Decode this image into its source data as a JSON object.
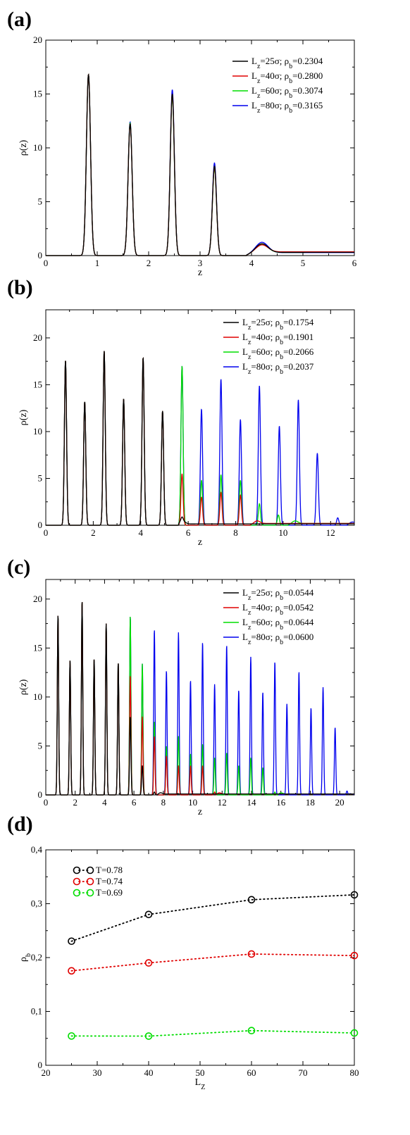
{
  "colors": {
    "black": "#000000",
    "red": "#e00000",
    "green": "#00dd00",
    "blue": "#0000ee"
  },
  "chart_data": [
    {
      "type": "line",
      "panel_label": "(a)",
      "xlabel": "z",
      "ylabel": "ρ(z)",
      "xlim": [
        0,
        6
      ],
      "ylim": [
        0,
        20
      ],
      "xticks": [
        0,
        1,
        2,
        3,
        4,
        5,
        6
      ],
      "yticks": [
        0,
        5,
        10,
        15,
        20
      ],
      "grid": false,
      "legend_position": "top-right",
      "series": [
        {
          "lz": "25",
          "rho": "0.2304",
          "color": "#000000",
          "peaks": [
            [
              0.83,
              16.8
            ],
            [
              1.64,
              12.2
            ],
            [
              2.46,
              15.0
            ],
            [
              3.28,
              8.3
            ]
          ],
          "tail": {
            "start": 3.9,
            "bump": [
              4.2,
              0.85
            ],
            "level": 0.3
          }
        },
        {
          "lz": "40",
          "rho": "0.2800",
          "color": "#e00000",
          "peaks": [
            [
              0.83,
              16.8
            ],
            [
              1.64,
              12.2
            ],
            [
              2.46,
              15.0
            ],
            [
              3.28,
              8.2
            ]
          ],
          "tail": {
            "start": 3.9,
            "bump": [
              4.2,
              0.7
            ],
            "level": 0.35
          }
        },
        {
          "lz": "60",
          "rho": "0.3074",
          "color": "#00dd00",
          "peaks": [
            [
              0.83,
              16.8
            ],
            [
              1.64,
              12.3
            ],
            [
              2.46,
              14.8
            ],
            [
              3.28,
              8.1
            ]
          ],
          "tail": {
            "start": 3.9,
            "bump": [
              4.2,
              0.8
            ],
            "level": 0.3
          }
        },
        {
          "lz": "80",
          "rho": "0.3165",
          "color": "#0000ee",
          "peaks": [
            [
              0.83,
              16.8
            ],
            [
              1.64,
              12.4
            ],
            [
              2.46,
              15.4
            ],
            [
              3.28,
              8.6
            ]
          ],
          "tail": {
            "start": 3.9,
            "bump": [
              4.2,
              1.0
            ],
            "level": 0.28
          }
        }
      ]
    },
    {
      "type": "line",
      "panel_label": "(b)",
      "xlabel": "z",
      "ylabel": "ρ(z)",
      "xlim": [
        0,
        13
      ],
      "ylim": [
        0,
        23
      ],
      "xticks": [
        0,
        2,
        4,
        6,
        8,
        10,
        12
      ],
      "yticks": [
        0,
        5,
        10,
        15,
        20
      ],
      "grid": false,
      "legend_position": "top-right",
      "series": [
        {
          "lz": "25",
          "rho": "0.1754",
          "color": "#000000",
          "peaks": [
            [
              0.83,
              17.6
            ],
            [
              1.64,
              13.2
            ],
            [
              2.46,
              18.6
            ],
            [
              3.28,
              13.5
            ],
            [
              4.1,
              17.9
            ],
            [
              4.92,
              12.2
            ],
            [
              5.74,
              0.4
            ]
          ],
          "tail": {
            "start": 5.6,
            "bump": [
              5.74,
              0.4
            ],
            "level": 0.15
          }
        },
        {
          "lz": "40",
          "rho": "0.1901",
          "color": "#e00000",
          "peaks": [
            [
              0.83,
              17.6
            ],
            [
              1.64,
              13.2
            ],
            [
              2.46,
              18.6
            ],
            [
              3.28,
              13.5
            ],
            [
              4.1,
              17.9
            ],
            [
              4.92,
              12.2
            ],
            [
              5.74,
              5.5
            ],
            [
              6.56,
              3.0
            ],
            [
              7.38,
              3.5
            ],
            [
              8.2,
              3.2
            ]
          ],
          "tail": {
            "start": 8.6,
            "bump": [
              8.9,
              0.3
            ],
            "level": 0.2
          }
        },
        {
          "lz": "60",
          "rho": "0.2066",
          "color": "#00dd00",
          "peaks": [
            [
              0.83,
              17.6
            ],
            [
              1.64,
              13.2
            ],
            [
              2.46,
              18.6
            ],
            [
              3.28,
              13.5
            ],
            [
              4.1,
              17.9
            ],
            [
              4.92,
              12.2
            ],
            [
              5.74,
              17.0
            ],
            [
              6.56,
              4.8
            ],
            [
              7.38,
              5.4
            ],
            [
              8.2,
              4.8
            ],
            [
              9.0,
              2.3
            ],
            [
              9.8,
              1.1
            ]
          ],
          "tail": {
            "start": 10.2,
            "bump": [
              10.5,
              0.3
            ],
            "level": 0.2
          }
        },
        {
          "lz": "80",
          "rho": "0.2037",
          "color": "#0000ee",
          "peaks": [
            [
              0.83,
              17.6
            ],
            [
              1.64,
              13.2
            ],
            [
              2.46,
              18.6
            ],
            [
              3.28,
              13.5
            ],
            [
              4.1,
              17.9
            ],
            [
              4.92,
              12.2
            ],
            [
              5.74,
              17.0
            ],
            [
              6.56,
              12.4
            ],
            [
              7.38,
              15.6
            ],
            [
              8.2,
              11.3
            ],
            [
              9.0,
              14.9
            ],
            [
              9.84,
              10.6
            ],
            [
              10.64,
              13.4
            ],
            [
              11.44,
              7.7
            ],
            [
              12.3,
              0.8
            ]
          ],
          "tail": {
            "start": 12.7,
            "bump": [
              12.9,
              0.2
            ],
            "level": 0.2
          }
        }
      ]
    },
    {
      "type": "line",
      "panel_label": "(c)",
      "xlabel": "z",
      "ylabel": "ρ(z)",
      "xlim": [
        0,
        21
      ],
      "ylim": [
        0,
        22
      ],
      "xticks": [
        0,
        2,
        4,
        6,
        8,
        10,
        12,
        14,
        16,
        18,
        20
      ],
      "yticks": [
        0,
        5,
        10,
        15,
        20
      ],
      "grid": false,
      "legend_position": "top-right",
      "series": [
        {
          "lz": "25",
          "rho": "0.0544",
          "color": "#000000",
          "peaks": [
            [
              0.83,
              18.4
            ],
            [
              1.65,
              13.7
            ],
            [
              2.47,
              19.8
            ],
            [
              3.29,
              13.9
            ],
            [
              4.11,
              17.5
            ],
            [
              4.93,
              13.5
            ],
            [
              5.75,
              8.0
            ],
            [
              6.57,
              3.0
            ],
            [
              7.39,
              0.3
            ]
          ],
          "tail": {
            "start": 7.6,
            "bump": [
              7.8,
              0.15
            ],
            "level": 0.1
          }
        },
        {
          "lz": "40",
          "rho": "0.0542",
          "color": "#e00000",
          "peaks": [
            [
              0.83,
              18.4
            ],
            [
              1.65,
              13.7
            ],
            [
              2.47,
              19.8
            ],
            [
              3.29,
              13.9
            ],
            [
              4.11,
              17.5
            ],
            [
              4.93,
              13.5
            ],
            [
              5.75,
              12.2
            ],
            [
              6.57,
              8.0
            ],
            [
              7.39,
              6.0
            ],
            [
              8.21,
              4.0
            ],
            [
              9.03,
              3.0
            ],
            [
              9.85,
              3.0
            ],
            [
              10.67,
              3.0
            ],
            [
              11.49,
              0.3
            ]
          ],
          "tail": {
            "start": 11.6,
            "bump": [
              11.8,
              0.15
            ],
            "level": 0.1
          }
        },
        {
          "lz": "60",
          "rho": "0.0644",
          "color": "#00dd00",
          "peaks": [
            [
              0.83,
              18.4
            ],
            [
              1.65,
              13.7
            ],
            [
              2.47,
              19.8
            ],
            [
              3.29,
              13.9
            ],
            [
              4.11,
              17.5
            ],
            [
              4.93,
              13.5
            ],
            [
              5.75,
              18.3
            ],
            [
              6.57,
              13.4
            ],
            [
              7.39,
              7.5
            ],
            [
              8.21,
              5.0
            ],
            [
              9.03,
              6.0
            ],
            [
              9.85,
              4.2
            ],
            [
              10.67,
              5.2
            ],
            [
              11.49,
              3.8
            ],
            [
              12.31,
              4.3
            ],
            [
              13.13,
              3.0
            ],
            [
              13.95,
              3.8
            ],
            [
              14.77,
              2.8
            ],
            [
              15.59,
              0.3
            ]
          ],
          "tail": {
            "start": 15.8,
            "bump": [
              16.0,
              0.15
            ],
            "level": 0.1
          }
        },
        {
          "lz": "80",
          "rho": "0.0600",
          "color": "#0000ee",
          "peaks": [
            [
              0.83,
              18.4
            ],
            [
              1.65,
              13.7
            ],
            [
              2.47,
              19.8
            ],
            [
              3.29,
              13.9
            ],
            [
              4.11,
              17.5
            ],
            [
              4.93,
              13.5
            ],
            [
              5.75,
              18.3
            ],
            [
              6.57,
              13.4
            ],
            [
              7.39,
              16.9
            ],
            [
              8.21,
              12.7
            ],
            [
              9.03,
              16.6
            ],
            [
              9.85,
              11.7
            ],
            [
              10.67,
              15.6
            ],
            [
              11.49,
              11.3
            ],
            [
              12.31,
              15.3
            ],
            [
              13.13,
              10.7
            ],
            [
              13.95,
              14.1
            ],
            [
              14.77,
              10.5
            ],
            [
              15.59,
              13.6
            ],
            [
              16.41,
              9.3
            ],
            [
              17.23,
              12.6
            ],
            [
              18.05,
              8.9
            ],
            [
              18.87,
              11.0
            ],
            [
              19.69,
              6.9
            ],
            [
              20.5,
              0.4
            ]
          ],
          "tail": {
            "start": 20.6,
            "bump": [
              20.7,
              0.1
            ],
            "level": 0.05
          }
        }
      ]
    },
    {
      "type": "scatter",
      "panel_label": "(d)",
      "xlabel": "L",
      "xlabel_sub": "Z",
      "ylabel": "ρ",
      "ylabel_sub": "b",
      "xlim": [
        20,
        80
      ],
      "ylim": [
        0,
        0.4
      ],
      "xticks": [
        "20",
        "30",
        "40",
        "50",
        "60",
        "70",
        "80"
      ],
      "yticks": [
        "0",
        "0,1",
        "0,2",
        "0,3",
        "0,4"
      ],
      "grid": false,
      "legend_position": "top-left",
      "series": [
        {
          "name": "T=0.78",
          "color": "#000000",
          "x": [
            25,
            40,
            60,
            80
          ],
          "y": [
            0.2304,
            0.28,
            0.3074,
            0.3165
          ]
        },
        {
          "name": "T=0.74",
          "color": "#e00000",
          "x": [
            25,
            40,
            60,
            80
          ],
          "y": [
            0.1754,
            0.1901,
            0.2066,
            0.2037
          ]
        },
        {
          "name": "T=0.69",
          "color": "#00dd00",
          "x": [
            25,
            40,
            60,
            80
          ],
          "y": [
            0.0544,
            0.0542,
            0.0644,
            0.06
          ]
        }
      ]
    }
  ]
}
